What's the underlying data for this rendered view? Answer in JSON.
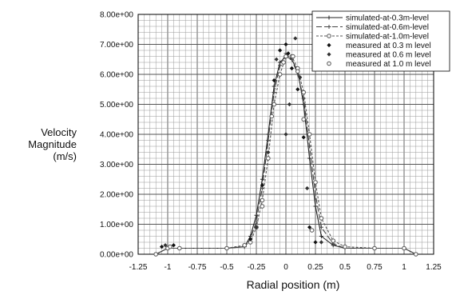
{
  "chart_data": {
    "type": "line",
    "title": "",
    "xlabel": "Radial position  (m)",
    "ylabel_lines": [
      "Velocity",
      "Magnitude",
      "(m/s)"
    ],
    "xlim": [
      -1.25,
      1.25
    ],
    "ylim": [
      0,
      8
    ],
    "x_ticks": [
      -1.25,
      -1,
      -0.75,
      -0.5,
      -0.25,
      0,
      0.25,
      0.5,
      0.75,
      1,
      1.25
    ],
    "x_tick_labels": [
      "-1.25",
      "-1",
      "-0.75",
      "-0.5",
      "-0.25",
      "0",
      "0.25",
      "0.5",
      "0.75",
      "1",
      "1.25"
    ],
    "y_ticks": [
      0,
      1,
      2,
      3,
      4,
      5,
      6,
      7,
      8
    ],
    "y_tick_labels": [
      "0.00e+00",
      "1.00e+00",
      "2.00e+00",
      "3.00e+00",
      "4.00e+00",
      "5.00e+00",
      "6.00e+00",
      "7.00e+00",
      "8.00e+00"
    ],
    "grid": true,
    "legend_position": "top-right",
    "series": [
      {
        "name": "simulated-at-0.3m-level",
        "kind": "line",
        "marker": "plus",
        "dash": "",
        "color": "#222222",
        "x": [
          -1.1,
          -1.0,
          -0.9,
          -0.5,
          -0.35,
          -0.3,
          -0.25,
          -0.2,
          -0.15,
          -0.1,
          -0.05,
          0.0,
          0.05,
          0.1,
          0.15,
          0.2,
          0.25,
          0.3,
          0.4,
          0.5,
          0.75,
          1.0,
          1.1
        ],
        "y": [
          0.0,
          0.2,
          0.2,
          0.2,
          0.25,
          0.6,
          1.3,
          2.5,
          4.0,
          5.6,
          6.4,
          6.6,
          6.5,
          6.1,
          5.0,
          3.2,
          1.6,
          0.6,
          0.3,
          0.2,
          0.2,
          0.2,
          0.0
        ]
      },
      {
        "name": "simulated-at-0.6m-level",
        "kind": "line",
        "marker": "plus",
        "dash": "7,3",
        "color": "#444444",
        "x": [
          -1.1,
          -1.0,
          -0.9,
          -0.5,
          -0.35,
          -0.3,
          -0.25,
          -0.2,
          -0.15,
          -0.1,
          -0.05,
          0.0,
          0.05,
          0.1,
          0.15,
          0.2,
          0.25,
          0.3,
          0.4,
          0.5,
          0.75,
          1.0,
          1.1
        ],
        "y": [
          0.0,
          0.2,
          0.2,
          0.2,
          0.25,
          0.5,
          1.1,
          2.2,
          3.8,
          5.4,
          6.3,
          6.7,
          6.5,
          6.0,
          5.2,
          3.6,
          2.0,
          0.9,
          0.35,
          0.2,
          0.2,
          0.2,
          0.0
        ]
      },
      {
        "name": "simulated-at-1.0m-level",
        "kind": "line",
        "marker": "circle",
        "dash": "3,2",
        "color": "#555555",
        "x": [
          -1.1,
          -1.0,
          -0.9,
          -0.5,
          -0.35,
          -0.3,
          -0.25,
          -0.2,
          -0.15,
          -0.1,
          -0.05,
          0.0,
          0.05,
          0.1,
          0.15,
          0.2,
          0.25,
          0.3,
          0.4,
          0.5,
          0.75,
          1.0,
          1.1
        ],
        "y": [
          0.0,
          0.2,
          0.2,
          0.2,
          0.3,
          0.4,
          0.9,
          1.8,
          3.2,
          5.0,
          6.0,
          6.6,
          6.6,
          6.2,
          5.4,
          4.0,
          2.4,
          1.2,
          0.45,
          0.25,
          0.2,
          0.2,
          0.0
        ]
      },
      {
        "name": "measured at 0.3 m level",
        "kind": "scatter",
        "marker": "diamond",
        "color": "#111111",
        "x": [
          -1.05,
          -0.95,
          -0.3,
          -0.2,
          -0.1,
          -0.05,
          0.0,
          0.02,
          0.05,
          0.1,
          0.15,
          0.2,
          0.25
        ],
        "y": [
          0.25,
          0.3,
          0.5,
          2.3,
          5.8,
          6.8,
          7.0,
          6.7,
          6.2,
          5.5,
          3.9,
          0.9,
          0.4
        ]
      },
      {
        "name": "measured at 0.6 m level",
        "kind": "scatter",
        "marker": "diamond",
        "color": "#333333",
        "x": [
          -1.02,
          -0.25,
          -0.15,
          -0.08,
          0.0,
          0.03,
          0.08,
          0.12,
          0.18,
          0.3
        ],
        "y": [
          0.3,
          0.9,
          3.4,
          6.5,
          4.0,
          5.0,
          7.2,
          5.9,
          2.2,
          0.4
        ]
      },
      {
        "name": "measured at 1.0 m level",
        "kind": "scatter",
        "marker": "circle",
        "color": "#555555",
        "x": [
          -0.98,
          -0.2,
          -0.12,
          -0.02,
          0.06,
          0.1,
          0.15,
          0.22
        ],
        "y": [
          0.25,
          1.6,
          4.6,
          6.4,
          6.6,
          6.1,
          4.5,
          0.8
        ]
      }
    ]
  }
}
